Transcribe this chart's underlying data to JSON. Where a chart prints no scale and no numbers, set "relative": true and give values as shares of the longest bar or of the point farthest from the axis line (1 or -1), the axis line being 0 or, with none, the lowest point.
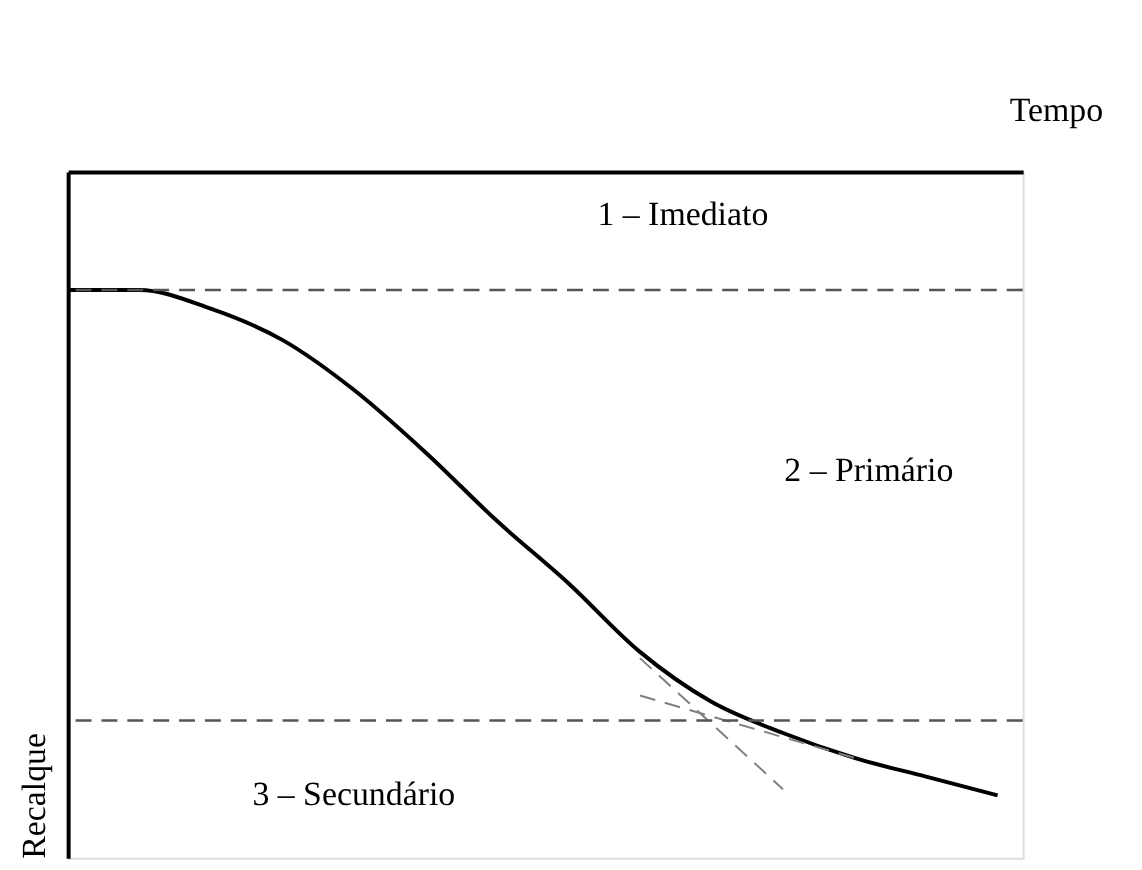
{
  "chart_data": {
    "type": "line",
    "relative": true,
    "xlabel": "Tempo",
    "ylabel": "Recalque",
    "categories": [
      null,
      null,
      null,
      null,
      null,
      null,
      null,
      null,
      null,
      null,
      null,
      null,
      null,
      null
    ],
    "series": [
      {
        "color": "#000000",
        "line_style": "solid",
        "values": [
          -0.19,
          -0.19,
          -0.22,
          -0.27,
          -0.35,
          -0.45,
          -0.56,
          -0.66,
          -0.77,
          -0.85,
          -0.9,
          -0.94,
          -0.97,
          -1.0
        ]
      },
      {
        "color": "#808080",
        "line_style": "dashed",
        "values": [
          null,
          null,
          null,
          null,
          null,
          null,
          null,
          null,
          -0.78,
          null,
          -0.99,
          null,
          null,
          null
        ]
      },
      {
        "color": "#808080",
        "line_style": "dashed",
        "values": [
          null,
          null,
          null,
          null,
          null,
          null,
          null,
          null,
          -0.84,
          null,
          null,
          -0.94,
          null,
          null
        ]
      }
    ],
    "ref_lines": [
      {
        "axis": "y",
        "value": -0.19,
        "color": "#555555",
        "line_style": "dashed"
      },
      {
        "axis": "y",
        "value": -0.88,
        "color": "#555555",
        "line_style": "dashed"
      }
    ],
    "annotations": [
      "1 – Imediato",
      "2 – Primário",
      "3 – Secundário"
    ],
    "marker": "none"
  }
}
